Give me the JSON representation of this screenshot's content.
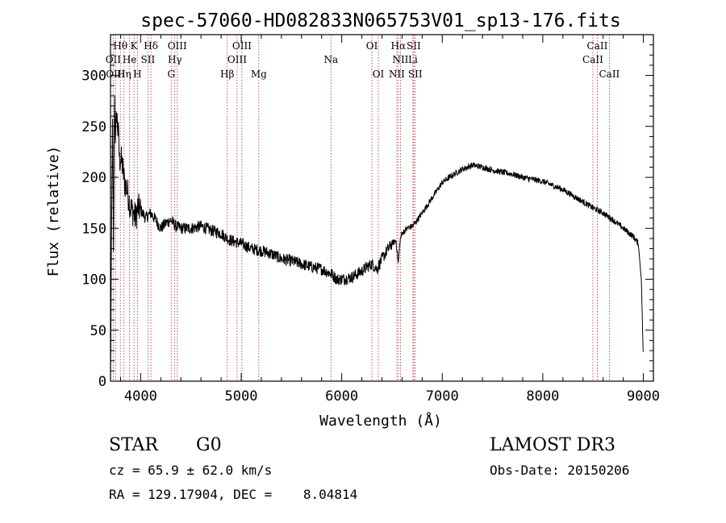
{
  "chart_data": {
    "type": "line",
    "title": "spec-57060-HD082833N065753V01_sp13-176.fits",
    "xlabel": "Wavelength (Å)",
    "ylabel": "Flux (relative)",
    "xlim": [
      3700,
      9100
    ],
    "ylim": [
      0,
      340
    ],
    "xticks": [
      4000,
      5000,
      6000,
      7000,
      8000,
      9000
    ],
    "yticks": [
      0,
      50,
      100,
      150,
      200,
      250,
      300
    ],
    "grid": false,
    "series": [
      {
        "name": "flux",
        "x": [
          3700,
          3710,
          3720,
          3730,
          3740,
          3750,
          3760,
          3770,
          3780,
          3790,
          3800,
          3820,
          3840,
          3860,
          3880,
          3900,
          3930,
          3950,
          3970,
          4000,
          4050,
          4100,
          4150,
          4200,
          4250,
          4300,
          4350,
          4400,
          4500,
          4600,
          4700,
          4800,
          4860,
          4900,
          5000,
          5100,
          5200,
          5300,
          5400,
          5500,
          5600,
          5700,
          5800,
          5900,
          5950,
          6000,
          6100,
          6200,
          6250,
          6300,
          6350,
          6400,
          6450,
          6500,
          6540,
          6563,
          6580,
          6600,
          6650,
          6700,
          6750,
          6800,
          6900,
          7000,
          7100,
          7200,
          7300,
          7400,
          7500,
          7600,
          7700,
          7800,
          7900,
          8000,
          8100,
          8200,
          8300,
          8400,
          8500,
          8600,
          8700,
          8800,
          8900,
          8950,
          8980,
          9000
        ],
        "values": [
          0,
          135,
          260,
          120,
          290,
          230,
          265,
          250,
          240,
          215,
          220,
          210,
          195,
          190,
          180,
          170,
          165,
          160,
          170,
          168,
          160,
          165,
          158,
          150,
          155,
          158,
          152,
          150,
          150,
          152,
          148,
          145,
          140,
          138,
          135,
          130,
          128,
          125,
          120,
          118,
          115,
          112,
          110,
          105,
          100,
          100,
          102,
          108,
          112,
          115,
          110,
          120,
          128,
          135,
          138,
          115,
          138,
          145,
          150,
          152,
          158,
          165,
          180,
          195,
          202,
          208,
          212,
          210,
          207,
          205,
          203,
          200,
          198,
          196,
          192,
          188,
          182,
          176,
          170,
          165,
          158,
          150,
          142,
          135,
          100,
          20
        ]
      }
    ],
    "line_markers": [
      {
        "label": "Hθ",
        "x": 3798,
        "row": 1
      },
      {
        "label": "K",
        "x": 3934,
        "row": 1
      },
      {
        "label": "Hδ",
        "x": 4102,
        "row": 1
      },
      {
        "label": "OIII",
        "x": 4364,
        "row": 1
      },
      {
        "label": "OIII",
        "x": 5007,
        "row": 1
      },
      {
        "label": "OI",
        "x": 6300,
        "row": 1
      },
      {
        "label": "Hα",
        "x": 6563,
        "row": 1
      },
      {
        "label": "SII",
        "x": 6716,
        "row": 1
      },
      {
        "label": "CaII",
        "x": 8542,
        "row": 1
      },
      {
        "label": "OII",
        "x": 3727,
        "row": 2
      },
      {
        "label": "He",
        "x": 3889,
        "row": 2
      },
      {
        "label": "SII",
        "x": 4072,
        "row": 2
      },
      {
        "label": "Hγ",
        "x": 4340,
        "row": 2
      },
      {
        "label": "OIII",
        "x": 4959,
        "row": 2
      },
      {
        "label": "Na",
        "x": 5893,
        "row": 2
      },
      {
        "label": "NII",
        "x": 6584,
        "row": 2
      },
      {
        "label": "Li",
        "x": 6708,
        "row": 2
      },
      {
        "label": "CaII",
        "x": 8498,
        "row": 2
      },
      {
        "label": "OIII",
        "x": 3750,
        "row": 3
      },
      {
        "label": "Hη",
        "x": 3835,
        "row": 3
      },
      {
        "label": "H",
        "x": 3968,
        "row": 3
      },
      {
        "label": "G",
        "x": 4304,
        "row": 3
      },
      {
        "label": "Hβ",
        "x": 4861,
        "row": 3
      },
      {
        "label": "Mg",
        "x": 5175,
        "row": 3
      },
      {
        "label": "OI",
        "x": 6364,
        "row": 3
      },
      {
        "label": "NII",
        "x": 6548,
        "row": 3
      },
      {
        "label": "SII",
        "x": 6731,
        "row": 3
      },
      {
        "label": "CaII",
        "x": 8662,
        "row": 3
      }
    ]
  },
  "info": {
    "object_class": "STAR",
    "subclass": "G0",
    "survey": "LAMOST DR3",
    "redshift_line": "cz = 65.9 ± 62.0 km/s",
    "obs_date_line": "Obs-Date: 20150206",
    "coords_line": "RA = 129.17904, DEC =    8.04814"
  }
}
